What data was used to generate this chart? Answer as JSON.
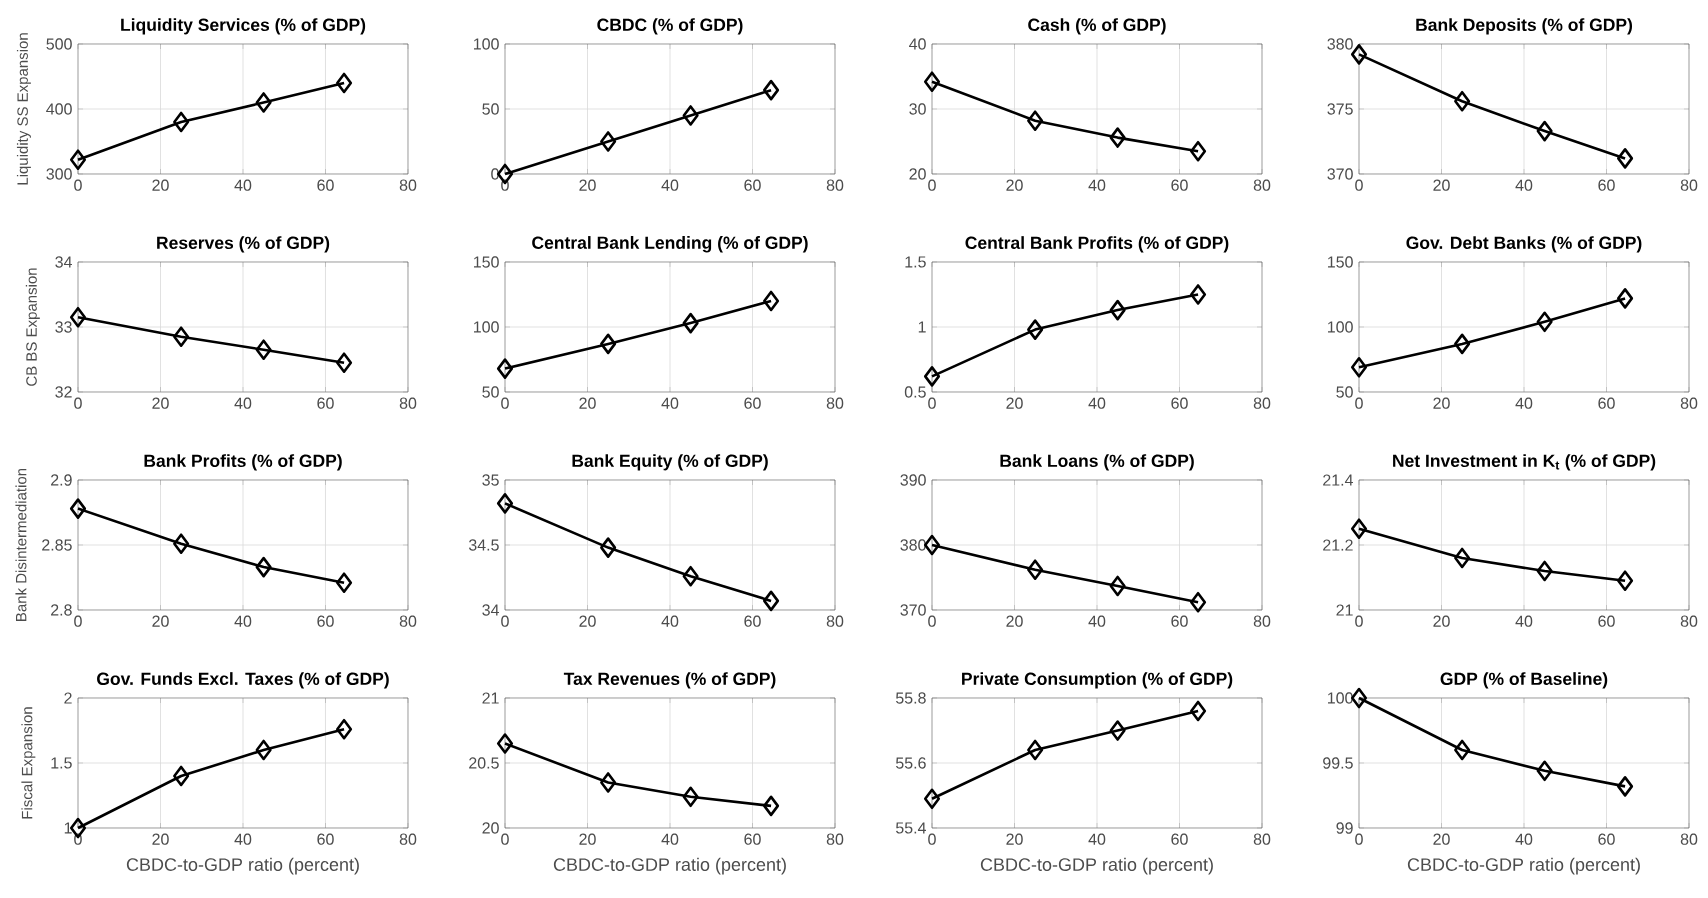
{
  "chart_data": [
    {
      "type": "line",
      "title": "Liquidity Services (% of GDP)",
      "ylabel": "Liquidity SS Expansion",
      "x": [
        0,
        25,
        45,
        64.5
      ],
      "xlim": [
        0,
        80
      ],
      "xticks": [
        0,
        20,
        40,
        60,
        80
      ],
      "ylim": [
        300,
        500
      ],
      "yticks": [
        300,
        400,
        500
      ],
      "grid": true,
      "marker": "diamond",
      "series": [
        {
          "color": "#000000",
          "values": [
            322,
            380,
            410,
            440
          ]
        }
      ]
    },
    {
      "type": "line",
      "title": "CBDC (% of GDP)",
      "x": [
        0,
        25,
        45,
        64.5
      ],
      "xlim": [
        0,
        80
      ],
      "xticks": [
        0,
        20,
        40,
        60,
        80
      ],
      "ylim": [
        0,
        100
      ],
      "yticks": [
        0,
        50,
        100
      ],
      "grid": true,
      "marker": "diamond",
      "series": [
        {
          "color": "#000000",
          "values": [
            0,
            25,
            45,
            64.5
          ]
        }
      ]
    },
    {
      "type": "line",
      "title": "Cash (% of GDP)",
      "x": [
        0,
        25,
        45,
        64.5
      ],
      "xlim": [
        0,
        80
      ],
      "xticks": [
        0,
        20,
        40,
        60,
        80
      ],
      "ylim": [
        20,
        40
      ],
      "yticks": [
        20,
        30,
        40
      ],
      "grid": true,
      "marker": "diamond",
      "series": [
        {
          "color": "#000000",
          "values": [
            34.2,
            28.2,
            25.6,
            23.5
          ]
        }
      ]
    },
    {
      "type": "line",
      "title": "Bank Deposits (% of GDP)",
      "x": [
        0,
        25,
        45,
        64.5
      ],
      "xlim": [
        0,
        80
      ],
      "xticks": [
        0,
        20,
        40,
        60,
        80
      ],
      "ylim": [
        370,
        380
      ],
      "yticks": [
        370,
        375,
        380
      ],
      "grid": true,
      "marker": "diamond",
      "series": [
        {
          "color": "#000000",
          "values": [
            379.2,
            375.6,
            373.3,
            371.2
          ]
        }
      ]
    },
    {
      "type": "line",
      "title": "Reserves (% of GDP)",
      "ylabel": "CB BS Expansion",
      "x": [
        0,
        25,
        45,
        64.5
      ],
      "xlim": [
        0,
        80
      ],
      "xticks": [
        0,
        20,
        40,
        60,
        80
      ],
      "ylim": [
        32,
        34
      ],
      "yticks": [
        32,
        33,
        34
      ],
      "grid": true,
      "marker": "diamond",
      "series": [
        {
          "color": "#000000",
          "values": [
            33.15,
            32.85,
            32.65,
            32.45
          ]
        }
      ]
    },
    {
      "type": "line",
      "title": "Central Bank Lending (% of GDP)",
      "x": [
        0,
        25,
        45,
        64.5
      ],
      "xlim": [
        0,
        80
      ],
      "xticks": [
        0,
        20,
        40,
        60,
        80
      ],
      "ylim": [
        50,
        150
      ],
      "yticks": [
        50,
        100,
        150
      ],
      "grid": true,
      "marker": "diamond",
      "series": [
        {
          "color": "#000000",
          "values": [
            68,
            87,
            103,
            120
          ]
        }
      ]
    },
    {
      "type": "line",
      "title": "Central Bank Profits (% of GDP)",
      "x": [
        0,
        25,
        45,
        64.5
      ],
      "xlim": [
        0,
        80
      ],
      "xticks": [
        0,
        20,
        40,
        60,
        80
      ],
      "ylim": [
        0.5,
        1.5
      ],
      "yticks": [
        0.5,
        1,
        1.5
      ],
      "grid": true,
      "marker": "diamond",
      "series": [
        {
          "color": "#000000",
          "values": [
            0.62,
            0.98,
            1.13,
            1.25
          ]
        }
      ]
    },
    {
      "type": "line",
      "title": "Gov. Debt Banks (% of GDP)",
      "x": [
        0,
        25,
        45,
        64.5
      ],
      "xlim": [
        0,
        80
      ],
      "xticks": [
        0,
        20,
        40,
        60,
        80
      ],
      "ylim": [
        50,
        150
      ],
      "yticks": [
        50,
        100,
        150
      ],
      "grid": true,
      "marker": "diamond",
      "series": [
        {
          "color": "#000000",
          "values": [
            69,
            87,
            104,
            122
          ]
        }
      ]
    },
    {
      "type": "line",
      "title": "Bank Profits (% of GDP)",
      "ylabel": "Bank Disintermediation",
      "x": [
        0,
        25,
        45,
        64.5
      ],
      "xlim": [
        0,
        80
      ],
      "xticks": [
        0,
        20,
        40,
        60,
        80
      ],
      "ylim": [
        2.8,
        2.9
      ],
      "yticks": [
        2.8,
        2.85,
        2.9
      ],
      "grid": true,
      "marker": "diamond",
      "series": [
        {
          "color": "#000000",
          "values": [
            2.878,
            2.851,
            2.833,
            2.821
          ]
        }
      ]
    },
    {
      "type": "line",
      "title": "Bank Equity (% of GDP)",
      "x": [
        0,
        25,
        45,
        64.5
      ],
      "xlim": [
        0,
        80
      ],
      "xticks": [
        0,
        20,
        40,
        60,
        80
      ],
      "ylim": [
        34,
        35
      ],
      "yticks": [
        34,
        34.5,
        35
      ],
      "grid": true,
      "marker": "diamond",
      "series": [
        {
          "color": "#000000",
          "values": [
            34.82,
            34.48,
            34.26,
            34.07
          ]
        }
      ]
    },
    {
      "type": "line",
      "title": "Bank Loans (% of GDP)",
      "x": [
        0,
        25,
        45,
        64.5
      ],
      "xlim": [
        0,
        80
      ],
      "xticks": [
        0,
        20,
        40,
        60,
        80
      ],
      "ylim": [
        370,
        390
      ],
      "yticks": [
        370,
        380,
        390
      ],
      "grid": true,
      "marker": "diamond",
      "series": [
        {
          "color": "#000000",
          "values": [
            380,
            376.2,
            373.7,
            371.2
          ]
        }
      ]
    },
    {
      "type": "line",
      "title": "Net Investment in K$_{t}$ (% of GDP)",
      "x": [
        0,
        25,
        45,
        64.5
      ],
      "xlim": [
        0,
        80
      ],
      "xticks": [
        0,
        20,
        40,
        60,
        80
      ],
      "ylim": [
        21,
        21.4
      ],
      "yticks": [
        21,
        21.2,
        21.4
      ],
      "grid": true,
      "marker": "diamond",
      "series": [
        {
          "color": "#000000",
          "values": [
            21.25,
            21.16,
            21.12,
            21.09
          ]
        }
      ]
    },
    {
      "type": "line",
      "title": "Gov. Funds Excl. Taxes (% of GDP)",
      "ylabel": "Fiscal Expansion",
      "xlabel": "CBDC-to-GDP ratio (percent)",
      "x": [
        0,
        25,
        45,
        64.5
      ],
      "xlim": [
        0,
        80
      ],
      "xticks": [
        0,
        20,
        40,
        60,
        80
      ],
      "ylim": [
        1,
        2
      ],
      "yticks": [
        1,
        1.5,
        2
      ],
      "grid": true,
      "marker": "diamond",
      "series": [
        {
          "color": "#000000",
          "values": [
            1.0,
            1.4,
            1.6,
            1.76
          ]
        }
      ]
    },
    {
      "type": "line",
      "title": "Tax Revenues (% of GDP)",
      "xlabel": "CBDC-to-GDP ratio (percent)",
      "x": [
        0,
        25,
        45,
        64.5
      ],
      "xlim": [
        0,
        80
      ],
      "xticks": [
        0,
        20,
        40,
        60,
        80
      ],
      "ylim": [
        20,
        21
      ],
      "yticks": [
        20,
        20.5,
        21
      ],
      "grid": true,
      "marker": "diamond",
      "series": [
        {
          "color": "#000000",
          "values": [
            20.65,
            20.35,
            20.24,
            20.17
          ]
        }
      ]
    },
    {
      "type": "line",
      "title": "Private Consumption (% of GDP)",
      "xlabel": "CBDC-to-GDP ratio (percent)",
      "x": [
        0,
        25,
        45,
        64.5
      ],
      "xlim": [
        0,
        80
      ],
      "xticks": [
        0,
        20,
        40,
        60,
        80
      ],
      "ylim": [
        55.4,
        55.8
      ],
      "yticks": [
        55.4,
        55.6,
        55.8
      ],
      "grid": true,
      "marker": "diamond",
      "series": [
        {
          "color": "#000000",
          "values": [
            55.49,
            55.64,
            55.7,
            55.76
          ]
        }
      ]
    },
    {
      "type": "line",
      "title": "GDP (% of Baseline)",
      "xlabel": "CBDC-to-GDP ratio (percent)",
      "x": [
        0,
        25,
        45,
        64.5
      ],
      "xlim": [
        0,
        80
      ],
      "xticks": [
        0,
        20,
        40,
        60,
        80
      ],
      "ylim": [
        99,
        100
      ],
      "yticks": [
        99,
        99.5,
        100
      ],
      "grid": true,
      "marker": "diamond",
      "series": [
        {
          "color": "#000000",
          "values": [
            100,
            99.6,
            99.44,
            99.32
          ]
        }
      ]
    }
  ]
}
